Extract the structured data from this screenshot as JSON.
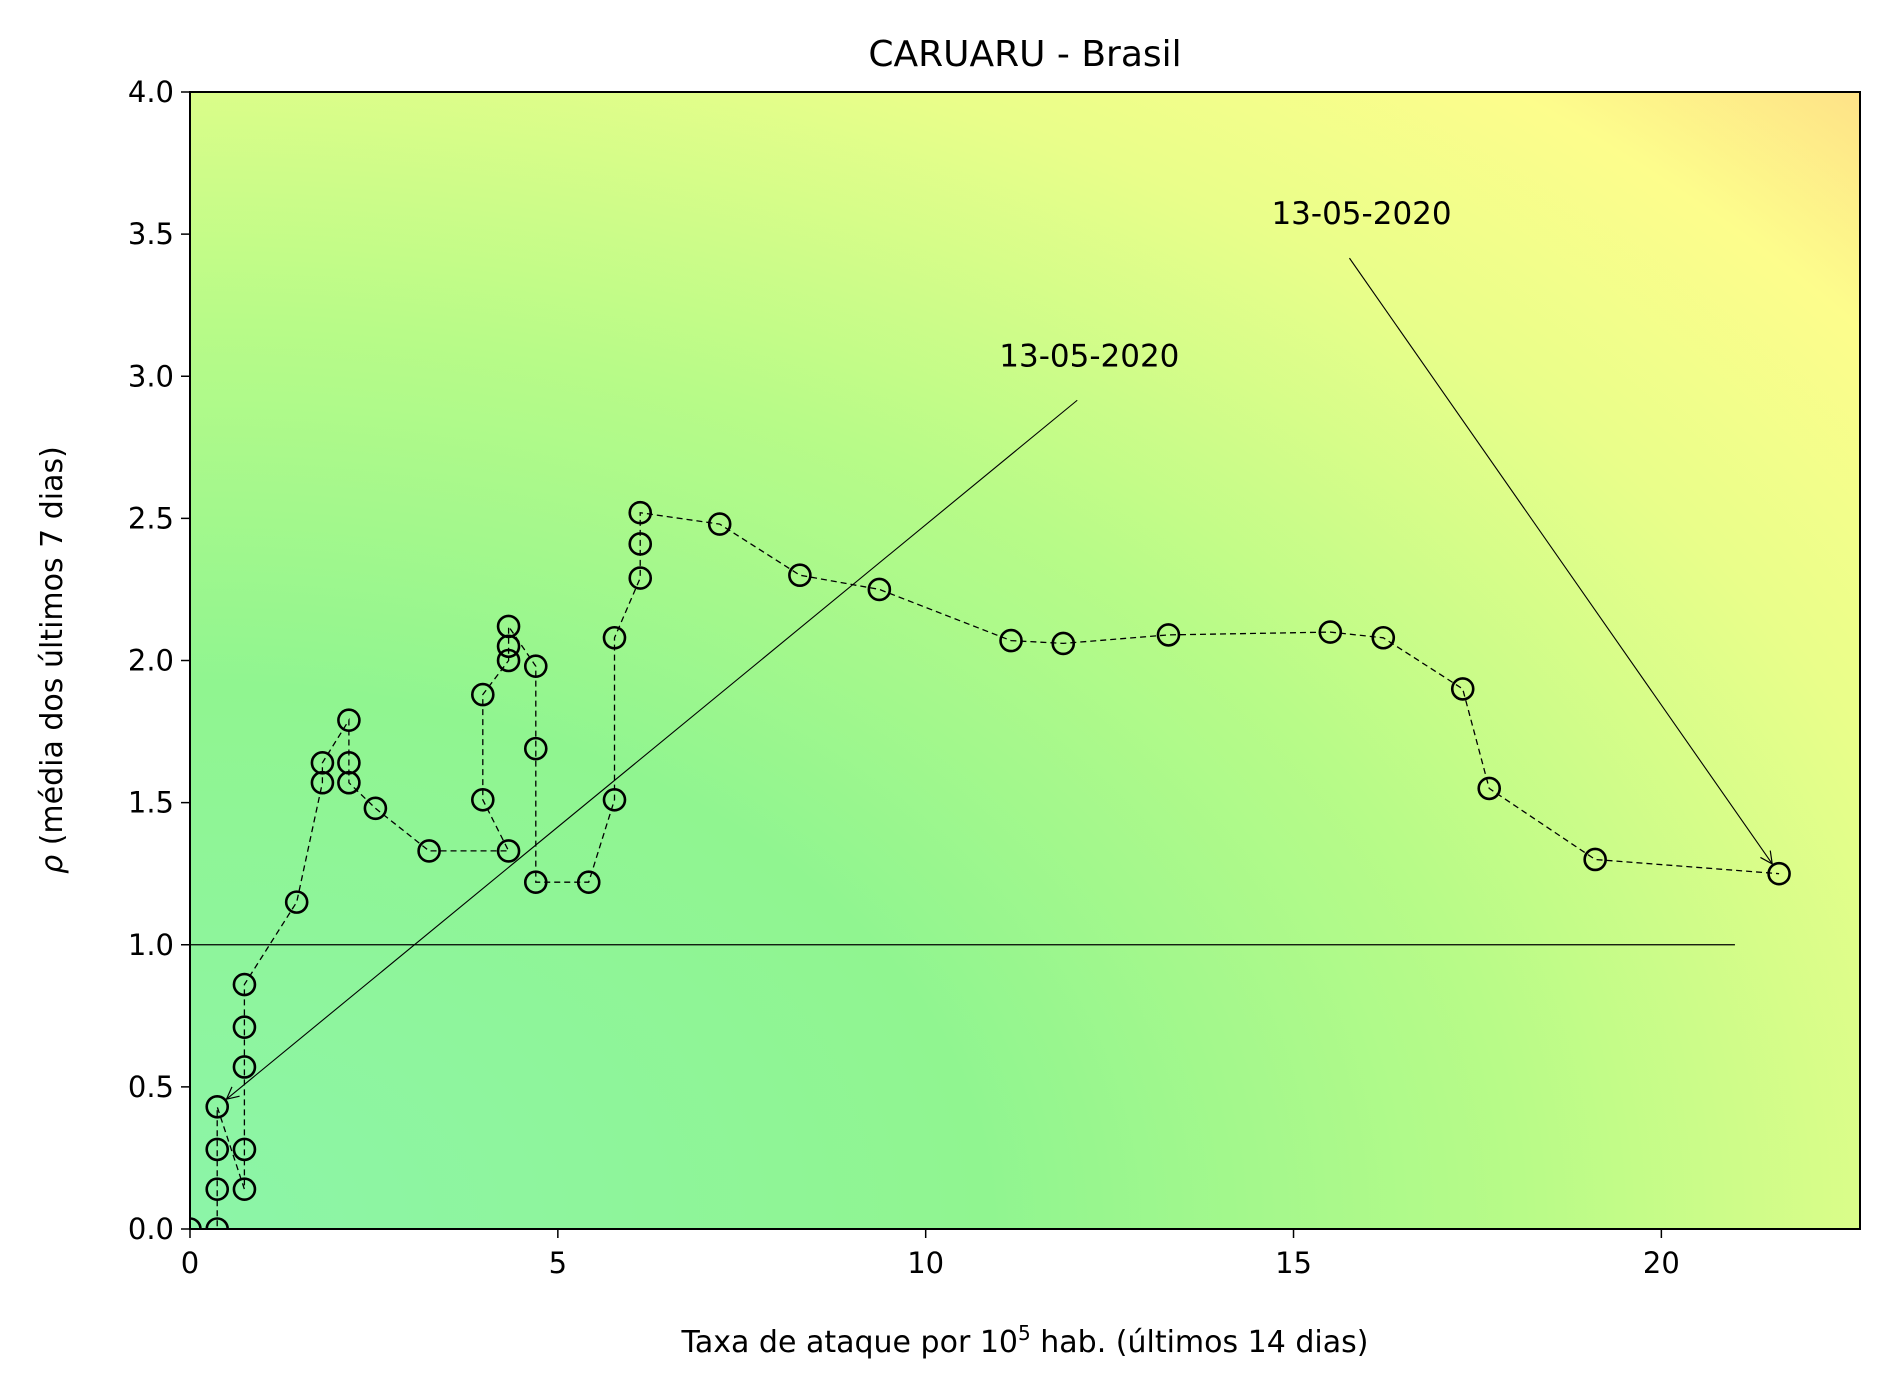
{
  "chart_data": {
    "type": "scatter",
    "title": "CARUARU - Brasil",
    "xlabel_prefix": "Taxa de ataque por 10",
    "xlabel_sup": "5",
    "xlabel_suffix": " hab. (últimos 14 dias)",
    "ylabel_symbol": "ρ",
    "ylabel_text": " (média dos últimos 7 dias)",
    "xlim": [
      0,
      22.7
    ],
    "ylim": [
      0,
      4.0
    ],
    "x_ticks": [
      0,
      5,
      10,
      15,
      20
    ],
    "x_tick_labels": [
      "0",
      "5",
      "10",
      "15",
      "20"
    ],
    "y_ticks": [
      0,
      0.5,
      1.0,
      1.5,
      2.0,
      2.5,
      3.0,
      3.5,
      4.0
    ],
    "y_tick_labels": [
      "0.0",
      "0.5",
      "1.0",
      "1.5",
      "2.0",
      "2.5",
      "3.0",
      "3.5",
      "4.0"
    ],
    "grid": false,
    "reference_line": {
      "y": 1.0,
      "x_from": 0,
      "x_to": 21
    },
    "series": [
      {
        "marker": "open-circle",
        "line": "dashed",
        "x": [
          0.0,
          0.37,
          0.37,
          0.37,
          0.37,
          0.74,
          0.74,
          0.74,
          0.74,
          0.74,
          1.45,
          1.8,
          1.8,
          2.16,
          2.16,
          2.16,
          2.52,
          3.25,
          4.33,
          3.98,
          3.98,
          4.33,
          4.33,
          4.33,
          4.7,
          4.7,
          4.7,
          5.42,
          5.77,
          5.77,
          6.12,
          6.12,
          6.12,
          7.2,
          8.29,
          9.37,
          11.16,
          11.87,
          13.3,
          15.5,
          16.22,
          17.3,
          17.66,
          19.1,
          21.6
        ],
        "y": [
          0.0,
          0.0,
          0.14,
          0.28,
          0.43,
          0.14,
          0.28,
          0.57,
          0.71,
          0.86,
          1.15,
          1.57,
          1.64,
          1.79,
          1.64,
          1.57,
          1.48,
          1.33,
          1.33,
          1.51,
          1.88,
          2.0,
          2.05,
          2.12,
          1.98,
          1.69,
          1.22,
          1.22,
          1.51,
          2.08,
          2.29,
          2.41,
          2.52,
          2.48,
          2.3,
          2.25,
          2.07,
          2.06,
          2.09,
          2.1,
          2.08,
          1.9,
          1.55,
          1.3,
          1.25
        ]
      }
    ],
    "annotations": [
      {
        "text": "13-05-2020",
        "text_x": 11.0,
        "text_y": 3.0,
        "point_x": 0.37,
        "point_y": 0.43
      },
      {
        "text": "13-05-2020",
        "text_x": 14.7,
        "text_y": 3.5,
        "point_x": 21.6,
        "point_y": 1.25
      }
    ],
    "background": {
      "colors": [
        "#8cf5a8",
        "#90f590",
        "#b5fb87",
        "#f9fe8c",
        "#fedd88"
      ]
    }
  }
}
